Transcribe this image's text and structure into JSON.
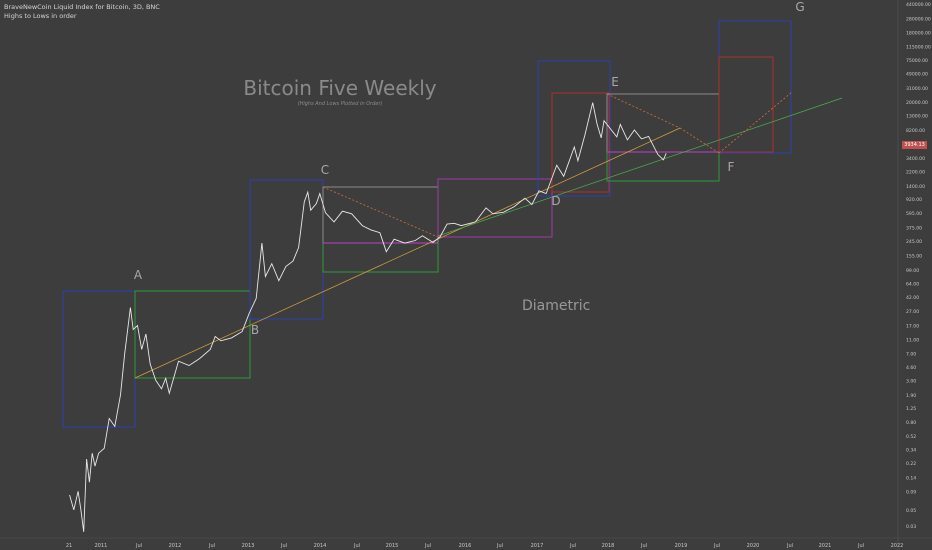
{
  "header": {
    "symbol_line": "BraveNewCoin Liquid Index for Bitcoin, 3D, BNC",
    "subtitle_line": "Highs to Lows in order"
  },
  "annotations": {
    "title": "Bitcoin Five Weekly",
    "subtitle": "(Highs And Lows Plotted in Order)",
    "pattern_label": "Diametric",
    "wave_labels": [
      "A",
      "B",
      "C",
      "D",
      "E",
      "F",
      "G"
    ]
  },
  "current_price_label": "3934.13",
  "chart_data": {
    "type": "line",
    "title": "Bitcoin Five Weekly",
    "subtitle": "(Highs And Lows Plotted in Order)",
    "scale": "log",
    "grid": false,
    "x_tick_labels": [
      "21",
      "2011",
      "Jul",
      "2012",
      "Jul",
      "2013",
      "Jul",
      "2014",
      "Jul",
      "2015",
      "Jul",
      "2016",
      "Jul",
      "2017",
      "Jul",
      "2018",
      "Jul",
      "2019",
      "Jul",
      "2020",
      "Jul",
      "2021",
      "Jul",
      "2022"
    ],
    "y_tick_labels": [
      "440000.00",
      "280000.00",
      "180000.00",
      "115000.00",
      "75000.00",
      "49000.00",
      "31000.00",
      "20000.00",
      "13000.00",
      "8200.00",
      "5400.00",
      "3400.00",
      "2200.00",
      "1400.00",
      "920.00",
      "595.00",
      "375.00",
      "245.00",
      "155.00",
      "99.00",
      "64.00",
      "42.00",
      "27.00",
      "17.00",
      "11.00",
      "7.00",
      "4.60",
      "3.00",
      "1.90",
      "1.25",
      "0.80",
      "0.52",
      "0.34",
      "0.22",
      "0.14",
      "0.09",
      "0.05",
      "0.03"
    ],
    "series": [
      {
        "values": [
          [
            2010.56,
            0.08
          ],
          [
            2010.62,
            0.05
          ],
          [
            2010.68,
            0.09
          ],
          [
            2010.72,
            0.05
          ],
          [
            2010.76,
            0.025
          ],
          [
            2010.8,
            0.25
          ],
          [
            2010.84,
            0.12
          ],
          [
            2010.88,
            0.3
          ],
          [
            2010.92,
            0.2
          ],
          [
            2010.97,
            0.3
          ],
          [
            2011.05,
            0.35
          ],
          [
            2011.12,
            0.9
          ],
          [
            2011.2,
            0.7
          ],
          [
            2011.28,
            1.9
          ],
          [
            2011.34,
            7.0
          ],
          [
            2011.42,
            30.0
          ],
          [
            2011.46,
            15.0
          ],
          [
            2011.52,
            17.0
          ],
          [
            2011.58,
            8.0
          ],
          [
            2011.64,
            13.0
          ],
          [
            2011.7,
            5.0
          ],
          [
            2011.78,
            3.0
          ],
          [
            2011.86,
            2.3
          ],
          [
            2011.92,
            3.2
          ],
          [
            2011.97,
            2.0
          ],
          [
            2012.1,
            5.5
          ],
          [
            2012.25,
            4.8
          ],
          [
            2012.4,
            6.0
          ],
          [
            2012.55,
            8.0
          ],
          [
            2012.62,
            12.0
          ],
          [
            2012.7,
            10.5
          ],
          [
            2012.85,
            11.5
          ],
          [
            2013.0,
            14.0
          ],
          [
            2013.1,
            25.0
          ],
          [
            2013.2,
            40.0
          ],
          [
            2013.28,
            230.0
          ],
          [
            2013.33,
            80.0
          ],
          [
            2013.42,
            120.0
          ],
          [
            2013.52,
            70.0
          ],
          [
            2013.62,
            110.0
          ],
          [
            2013.72,
            130.0
          ],
          [
            2013.8,
            200.0
          ],
          [
            2013.88,
            850.0
          ],
          [
            2013.93,
            1150.0
          ],
          [
            2013.97,
            650.0
          ],
          [
            2014.05,
            800.0
          ],
          [
            2014.1,
            1100.0
          ],
          [
            2014.18,
            600.0
          ],
          [
            2014.3,
            450.0
          ],
          [
            2014.42,
            630.0
          ],
          [
            2014.55,
            580.0
          ],
          [
            2014.7,
            400.0
          ],
          [
            2014.82,
            350.0
          ],
          [
            2014.95,
            320.0
          ],
          [
            2015.04,
            175.0
          ],
          [
            2015.15,
            260.0
          ],
          [
            2015.3,
            230.0
          ],
          [
            2015.45,
            250.0
          ],
          [
            2015.55,
            290.0
          ],
          [
            2015.7,
            235.0
          ],
          [
            2015.8,
            280.0
          ],
          [
            2015.9,
            420.0
          ],
          [
            2016.0,
            430.0
          ],
          [
            2016.1,
            400.0
          ],
          [
            2016.3,
            450.0
          ],
          [
            2016.45,
            700.0
          ],
          [
            2016.55,
            580.0
          ],
          [
            2016.7,
            610.0
          ],
          [
            2016.85,
            730.0
          ],
          [
            2017.0,
            950.0
          ],
          [
            2017.1,
            780.0
          ],
          [
            2017.2,
            1200.0
          ],
          [
            2017.3,
            1100.0
          ],
          [
            2017.45,
            2700.0
          ],
          [
            2017.55,
            1900.0
          ],
          [
            2017.7,
            4800.0
          ],
          [
            2017.75,
            3100.0
          ],
          [
            2017.85,
            7000.0
          ],
          [
            2017.96,
            19500.0
          ],
          [
            2018.02,
            10000.0
          ],
          [
            2018.08,
            6400.0
          ],
          [
            2018.12,
            11000.0
          ],
          [
            2018.3,
            6600.0
          ],
          [
            2018.35,
            9800.0
          ],
          [
            2018.45,
            6000.0
          ],
          [
            2018.55,
            8200.0
          ],
          [
            2018.65,
            6200.0
          ],
          [
            2018.75,
            6700.0
          ],
          [
            2018.88,
            3800.0
          ],
          [
            2018.96,
            3200.0
          ],
          [
            2019.0,
            3934.13
          ]
        ]
      }
    ]
  }
}
